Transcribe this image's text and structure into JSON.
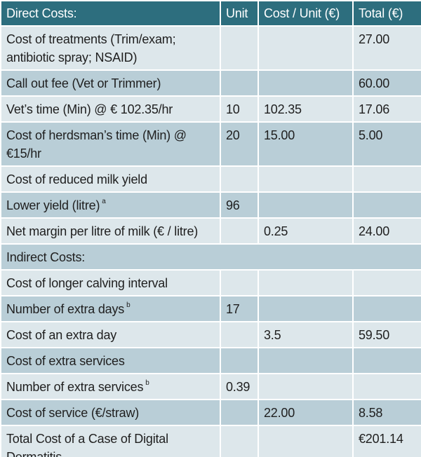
{
  "table": {
    "headers": [
      "Direct Costs:",
      "Unit",
      "Cost / Unit (€)",
      "Total (€)"
    ],
    "rows": [
      {
        "label": "Cost of treatments (Trim/exam; antibiotic spray; NSAID)",
        "sup": "",
        "unit": "",
        "cost_per_unit": "",
        "total": "27.00"
      },
      {
        "label": "Call out fee (Vet or Trimmer)",
        "sup": "",
        "unit": "",
        "cost_per_unit": "",
        "total": "60.00"
      },
      {
        "label": "Vet’s time (Min) @ € 102.35/hr",
        "sup": "",
        "unit": "10",
        "cost_per_unit": "102.35",
        "total": "17.06"
      },
      {
        "label": "Cost of herdsman’s time (Min) @ €15/hr",
        "sup": "",
        "unit": "20",
        "cost_per_unit": "15.00",
        "total": "5.00"
      },
      {
        "label": "Cost of reduced milk yield",
        "sup": "",
        "unit": "",
        "cost_per_unit": "",
        "total": ""
      },
      {
        "label": "Lower yield (litre)",
        "sup": "a",
        "unit": "96",
        "cost_per_unit": "",
        "total": ""
      },
      {
        "label": "Net margin per litre of milk (€ / litre)",
        "sup": "",
        "unit": "",
        "cost_per_unit": "0.25",
        "total": "24.00"
      },
      {
        "label": "Indirect Costs:",
        "sup": "",
        "unit": "",
        "cost_per_unit": "",
        "total": "",
        "span": true
      },
      {
        "label": "Cost of longer calving interval",
        "sup": "",
        "unit": "",
        "cost_per_unit": "",
        "total": ""
      },
      {
        "label": "Number of extra days",
        "sup": "b",
        "unit": "17",
        "cost_per_unit": "",
        "total": ""
      },
      {
        "label": "Cost of an extra day",
        "sup": "",
        "unit": "",
        "cost_per_unit": "3.5",
        "total": "59.50"
      },
      {
        "label": "Cost of extra services",
        "sup": "",
        "unit": "",
        "cost_per_unit": "",
        "total": ""
      },
      {
        "label": "Number of extra services",
        "sup": "b",
        "unit": "0.39",
        "cost_per_unit": "",
        "total": ""
      },
      {
        "label": "Cost of service (€/straw)",
        "sup": "",
        "unit": "",
        "cost_per_unit": "22.00",
        "total": "8.58"
      },
      {
        "label": "Total Cost of a Case of Digital Dermatitis",
        "sup": "",
        "unit": "",
        "cost_per_unit": "",
        "total": "€201.14"
      }
    ]
  }
}
